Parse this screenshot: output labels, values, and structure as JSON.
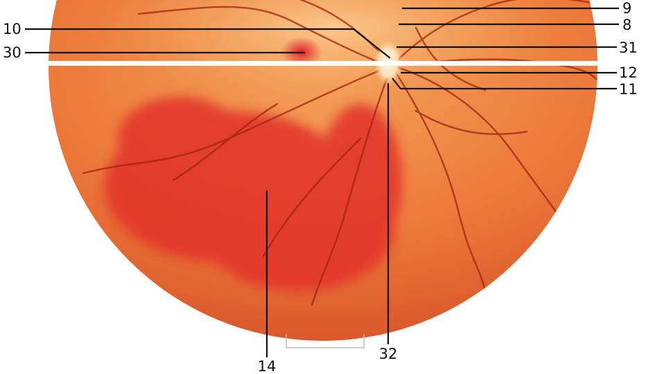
{
  "labels": [
    "9",
    "8",
    "31",
    "12",
    "11",
    "10",
    "30",
    "14",
    "32"
  ]
}
